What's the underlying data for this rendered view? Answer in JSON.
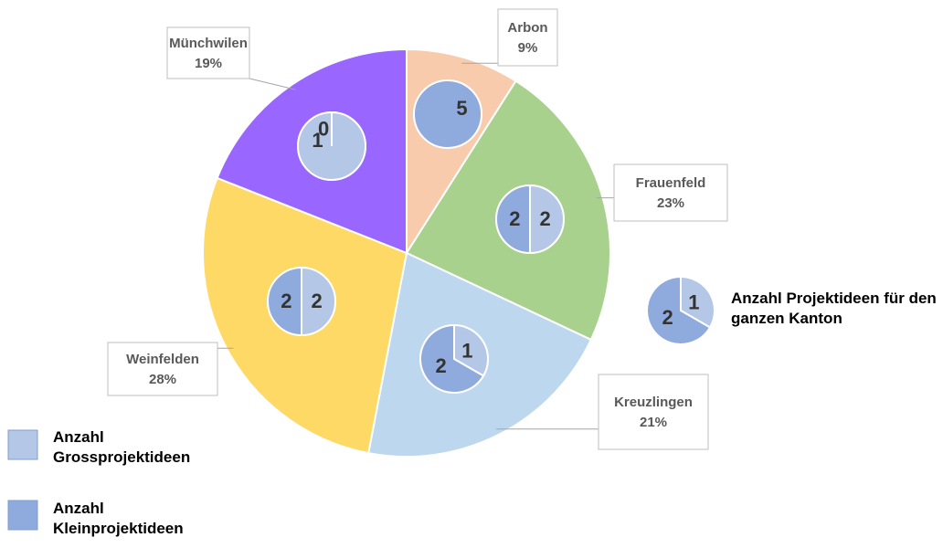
{
  "chart_data": {
    "type": "pie",
    "categories": [
      "Arbon",
      "Frauenfeld",
      "Kreuzlingen",
      "Weinfelden",
      "Münchwilen"
    ],
    "values": [
      9,
      23,
      21,
      28,
      19
    ],
    "value_labels": [
      "9%",
      "23%",
      "21%",
      "28%",
      "19%"
    ],
    "colors": [
      "#f8cbad",
      "#a9d18e",
      "#bdd7ee",
      "#ffd966",
      "#9966ff"
    ],
    "series": [
      {
        "name": "Anzahl Grossprojektideen",
        "color": "#b4c7e7",
        "values": [
          0,
          2,
          1,
          2,
          1
        ]
      },
      {
        "name": "Anzahl Kleinprojektideen",
        "color": "#8faadc",
        "values": [
          5,
          2,
          2,
          2,
          0
        ]
      }
    ],
    "canton": {
      "label": "Anzahl Projektideen für den ganzen Kanton",
      "values": [
        1,
        2
      ]
    }
  }
}
